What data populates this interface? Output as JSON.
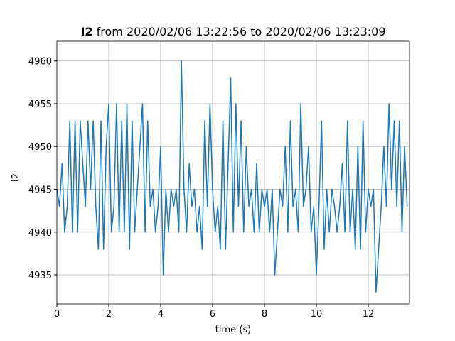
{
  "chart_data": {
    "type": "line",
    "title_bold": "I2",
    "title": "from 2020/02/06 13:22:56 to 2020/02/06 13:23:09",
    "xlabel": "time (s)",
    "ylabel": "I2",
    "x": [
      0,
      0.1,
      0.2,
      0.3,
      0.4,
      0.5,
      0.6,
      0.7,
      0.8,
      0.9,
      1,
      1.1,
      1.2,
      1.3,
      1.4,
      1.5,
      1.6,
      1.7,
      1.8,
      1.9,
      2,
      2.1,
      2.2,
      2.3,
      2.4,
      2.5,
      2.6,
      2.7,
      2.8,
      2.9,
      3,
      3.1,
      3.2,
      3.3,
      3.4,
      3.5,
      3.6,
      3.7,
      3.8,
      3.9,
      4,
      4.1,
      4.2,
      4.3,
      4.4,
      4.5,
      4.6,
      4.7,
      4.8,
      4.9,
      5,
      5.1,
      5.2,
      5.3,
      5.4,
      5.5,
      5.6,
      5.7,
      5.8,
      5.9,
      6,
      6.1,
      6.2,
      6.3,
      6.4,
      6.5,
      6.6,
      6.7,
      6.8,
      6.9,
      7,
      7.1,
      7.2,
      7.3,
      7.4,
      7.5,
      7.6,
      7.7,
      7.8,
      7.9,
      8,
      8.1,
      8.2,
      8.3,
      8.4,
      8.5,
      8.6,
      8.7,
      8.8,
      8.9,
      9,
      9.1,
      9.2,
      9.3,
      9.4,
      9.5,
      9.6,
      9.7,
      9.8,
      9.9,
      10,
      10.1,
      10.2,
      10.3,
      10.4,
      10.5,
      10.6,
      10.7,
      10.8,
      10.9,
      11,
      11.1,
      11.2,
      11.3,
      11.4,
      11.5,
      11.6,
      11.7,
      11.8,
      11.9,
      12,
      12.1,
      12.2,
      12.3,
      12.4,
      12.5,
      12.6,
      12.7,
      12.8,
      12.9,
      13,
      13.1,
      13.2,
      13.3,
      13.4,
      13.5
    ],
    "series": [
      {
        "name": "I2",
        "color": "#1f77b4",
        "values": [
          4945,
          4943,
          4948,
          4940,
          4943,
          4953,
          4940,
          4953,
          4940,
          4953,
          4948,
          4943,
          4953,
          4945,
          4953,
          4943,
          4938,
          4953,
          4938,
          4950,
          4955,
          4940,
          4943,
          4955,
          4940,
          4953,
          4940,
          4955,
          4938,
          4953,
          4940,
          4945,
          4950,
          4955,
          4940,
          4953,
          4943,
          4945,
          4940,
          4943,
          4950,
          4935,
          4945,
          4940,
          4945,
          4943,
          4945,
          4940,
          4960,
          4945,
          4940,
          4948,
          4943,
          4945,
          4940,
          4943,
          4938,
          4953,
          4943,
          4955,
          4945,
          4940,
          4943,
          4938,
          4953,
          4938,
          4948,
          4958,
          4940,
          4955,
          4943,
          4953,
          4940,
          4950,
          4943,
          4945,
          4940,
          4948,
          4940,
          4945,
          4943,
          4945,
          4940,
          4945,
          4935,
          4940,
          4945,
          4943,
          4950,
          4940,
          4953,
          4943,
          4945,
          4940,
          4955,
          4943,
          4945,
          4950,
          4940,
          4943,
          4935,
          4943,
          4953,
          4938,
          4945,
          4940,
          4945,
          4943,
          4940,
          4943,
          4948,
          4940,
          4953,
          4940,
          4945,
          4938,
          4950,
          4938,
          4953,
          4940,
          4945,
          4943,
          4945,
          4933,
          4938,
          4943,
          4950,
          4943,
          4955,
          4945,
          4953,
          4943,
          4953,
          4940,
          4950,
          4943
        ]
      }
    ],
    "xlim": [
      0,
      13.59
    ],
    "ylim": [
      4931.6,
      4962.3
    ],
    "xticks": [
      0,
      2,
      4,
      6,
      8,
      10,
      12
    ],
    "yticks": [
      4935,
      4940,
      4945,
      4950,
      4955,
      4960
    ],
    "grid": true
  }
}
